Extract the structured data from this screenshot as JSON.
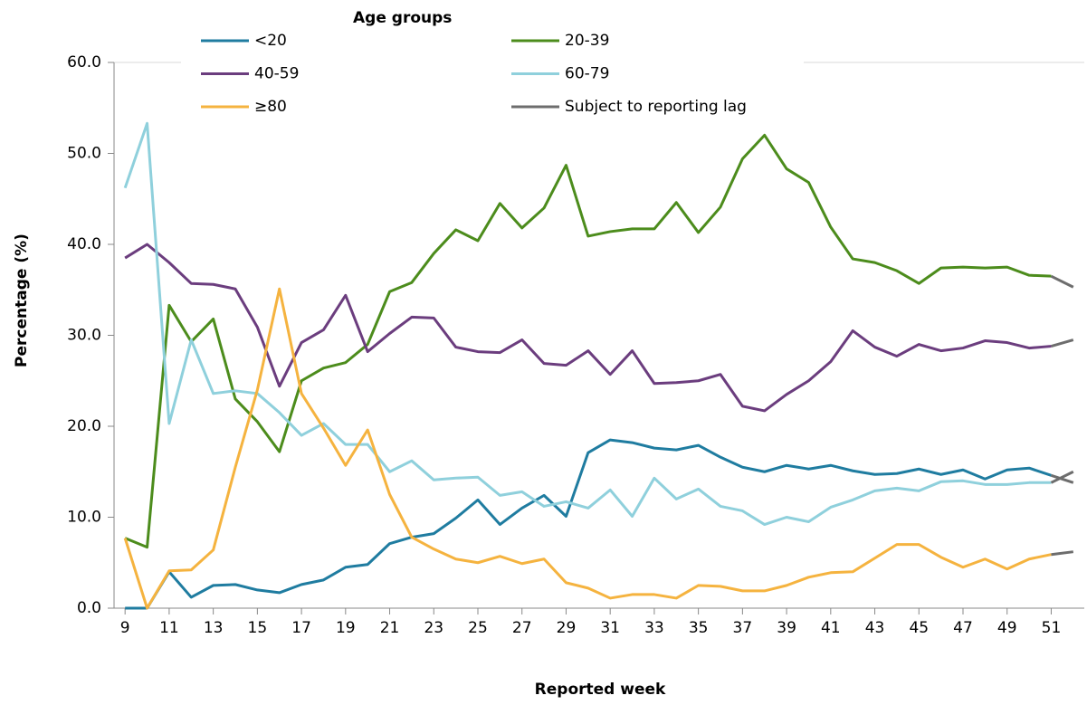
{
  "chart_data": {
    "type": "line",
    "legend_title": "Age groups",
    "x_label": "Reported week",
    "y_label": "Percentage (%)",
    "x": [
      9,
      10,
      11,
      12,
      13,
      14,
      15,
      16,
      17,
      18,
      19,
      20,
      21,
      22,
      23,
      24,
      25,
      26,
      27,
      28,
      29,
      30,
      31,
      32,
      33,
      34,
      35,
      36,
      37,
      38,
      39,
      40,
      41,
      42,
      43,
      44,
      45,
      46,
      47,
      48,
      49,
      50,
      51,
      52
    ],
    "series": [
      {
        "name": "<20",
        "color": "#1f7ca0",
        "values": [
          0,
          0,
          4.0,
          1.2,
          2.5,
          2.6,
          2.0,
          1.7,
          2.6,
          3.1,
          4.5,
          4.8,
          7.1,
          7.8,
          8.2,
          9.9,
          11.9,
          9.2,
          11.0,
          12.4,
          10.1,
          17.1,
          18.5,
          18.2,
          17.6,
          17.4,
          17.9,
          16.6,
          15.5,
          15.0,
          15.7,
          15.3,
          15.7,
          15.1,
          14.7,
          14.8,
          15.3,
          14.7,
          15.2,
          14.2,
          15.2,
          15.4,
          14.6,
          13.8
        ]
      },
      {
        "name": "20-39",
        "color": "#4c8c1c",
        "values": [
          7.7,
          6.7,
          33.3,
          29.3,
          31.8,
          23.0,
          20.5,
          17.2,
          25.0,
          26.4,
          27.0,
          29.0,
          34.8,
          35.8,
          39.0,
          41.6,
          40.4,
          44.5,
          41.8,
          44.0,
          48.7,
          40.9,
          41.4,
          41.7,
          41.7,
          44.6,
          41.3,
          44.1,
          49.4,
          52.0,
          48.3,
          46.8,
          41.9,
          38.4,
          38.0,
          37.1,
          35.7,
          37.4,
          37.5,
          37.4,
          37.5,
          36.6,
          36.5,
          35.3
        ]
      },
      {
        "name": "40-59",
        "color": "#6b3d7e",
        "values": [
          38.5,
          40.0,
          38.0,
          35.7,
          35.6,
          35.1,
          30.9,
          24.4,
          29.2,
          30.6,
          34.4,
          28.2,
          30.2,
          32.0,
          31.9,
          28.7,
          28.2,
          28.1,
          29.5,
          26.9,
          26.7,
          28.3,
          25.7,
          28.3,
          24.7,
          24.8,
          25.0,
          25.7,
          22.2,
          21.7,
          23.5,
          25.0,
          27.1,
          30.5,
          28.7,
          27.7,
          29.0,
          28.3,
          28.6,
          29.4,
          29.2,
          28.6,
          28.8,
          29.5
        ]
      },
      {
        "name": "60-79",
        "color": "#8fd0dc",
        "values": [
          46.2,
          53.3,
          20.3,
          29.5,
          23.6,
          23.9,
          23.6,
          21.5,
          19.0,
          20.3,
          18.0,
          18.0,
          15.0,
          16.2,
          14.1,
          14.3,
          14.4,
          12.4,
          12.8,
          11.2,
          11.7,
          11.0,
          13.0,
          10.1,
          14.3,
          12.0,
          13.1,
          11.2,
          10.7,
          9.2,
          10.0,
          9.5,
          11.1,
          11.9,
          12.9,
          13.2,
          12.9,
          13.9,
          14.0,
          13.6,
          13.6,
          13.8,
          13.8,
          15.0
        ]
      },
      {
        "name": "≥80",
        "color": "#f5b33f",
        "values": [
          7.7,
          0,
          4.1,
          4.2,
          6.4,
          15.5,
          24.0,
          35.1,
          23.6,
          19.8,
          15.7,
          19.6,
          12.5,
          7.8,
          6.5,
          5.4,
          5.0,
          5.7,
          4.9,
          5.4,
          2.8,
          2.2,
          1.1,
          1.5,
          1.5,
          1.1,
          2.5,
          2.4,
          1.9,
          1.9,
          2.5,
          3.4,
          3.9,
          4.0,
          5.5,
          7.0,
          7.0,
          5.6,
          4.5,
          5.4,
          4.3,
          5.4,
          5.9,
          6.2
        ]
      }
    ],
    "lag": {
      "name": "Subject to reporting lag",
      "color": "#6d6d6d",
      "from_x": 51
    },
    "xlim": [
      8.5,
      52.5
    ],
    "xticks": [
      9,
      11,
      13,
      15,
      17,
      19,
      21,
      23,
      25,
      27,
      29,
      31,
      33,
      35,
      37,
      39,
      41,
      43,
      45,
      47,
      49,
      51
    ],
    "ylim": [
      0,
      60
    ],
    "yticks": [
      {
        "value": 0,
        "label": "0.0"
      },
      {
        "value": 10,
        "label": "10.0"
      },
      {
        "value": 20,
        "label": "20.0"
      },
      {
        "value": 30,
        "label": "30.0"
      },
      {
        "value": 40,
        "label": "40.0"
      },
      {
        "value": 50,
        "label": "50.0"
      },
      {
        "value": 60,
        "label": "60.0"
      }
    ],
    "grid": false
  }
}
